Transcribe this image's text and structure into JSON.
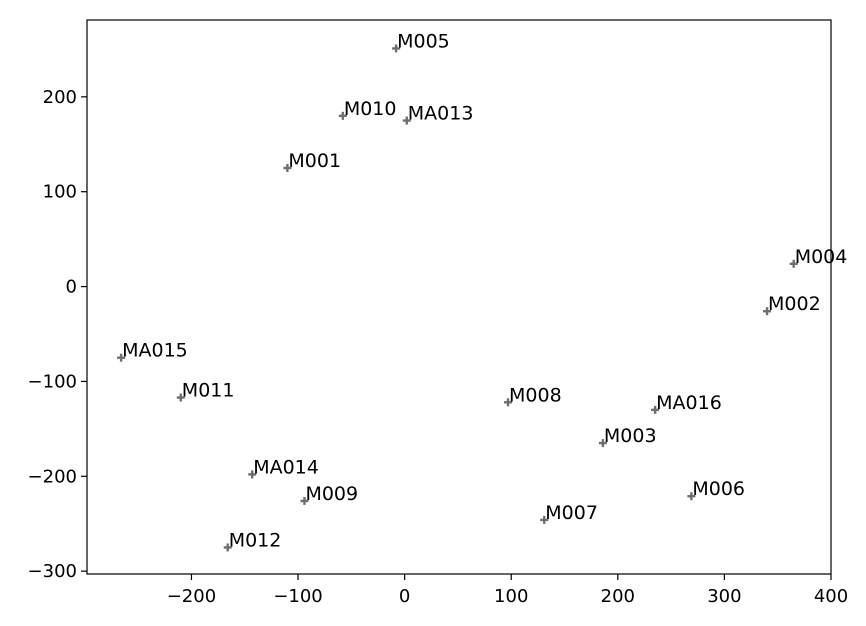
{
  "chart_data": {
    "type": "scatter",
    "title": "",
    "xlabel": "",
    "ylabel": "",
    "xlim": [
      -298,
      400
    ],
    "ylim": [
      -303,
      281
    ],
    "xticks": [
      -200,
      -100,
      0,
      100,
      200,
      300,
      400
    ],
    "yticks": [
      200,
      100,
      0,
      -100,
      -200,
      -300
    ],
    "xtick_labels": [
      "−200",
      "−100",
      "0",
      "100",
      "200",
      "300",
      "400"
    ],
    "ytick_labels": [
      "200",
      "100",
      "0",
      "−100",
      "−200",
      "−300"
    ],
    "grid": false,
    "marker": "plus",
    "marker_color": "#6e6e6e",
    "points": [
      {
        "label": "M005",
        "x": -8,
        "y": 251
      },
      {
        "label": "M010",
        "x": -58,
        "y": 180
      },
      {
        "label": "MA013",
        "x": 2,
        "y": 175
      },
      {
        "label": "M001",
        "x": -110,
        "y": 125
      },
      {
        "label": "M004",
        "x": 365,
        "y": 24
      },
      {
        "label": "M002",
        "x": 340,
        "y": -26
      },
      {
        "label": "MA015",
        "x": -266,
        "y": -75
      },
      {
        "label": "M011",
        "x": -210,
        "y": -117
      },
      {
        "label": "M008",
        "x": 97,
        "y": -122
      },
      {
        "label": "MA016",
        "x": 235,
        "y": -130
      },
      {
        "label": "M003",
        "x": 186,
        "y": -165
      },
      {
        "label": "MA014",
        "x": -143,
        "y": -198
      },
      {
        "label": "M009",
        "x": -94,
        "y": -226
      },
      {
        "label": "M006",
        "x": 269,
        "y": -221
      },
      {
        "label": "M007",
        "x": 131,
        "y": -246
      },
      {
        "label": "M012",
        "x": -166,
        "y": -275
      }
    ]
  }
}
